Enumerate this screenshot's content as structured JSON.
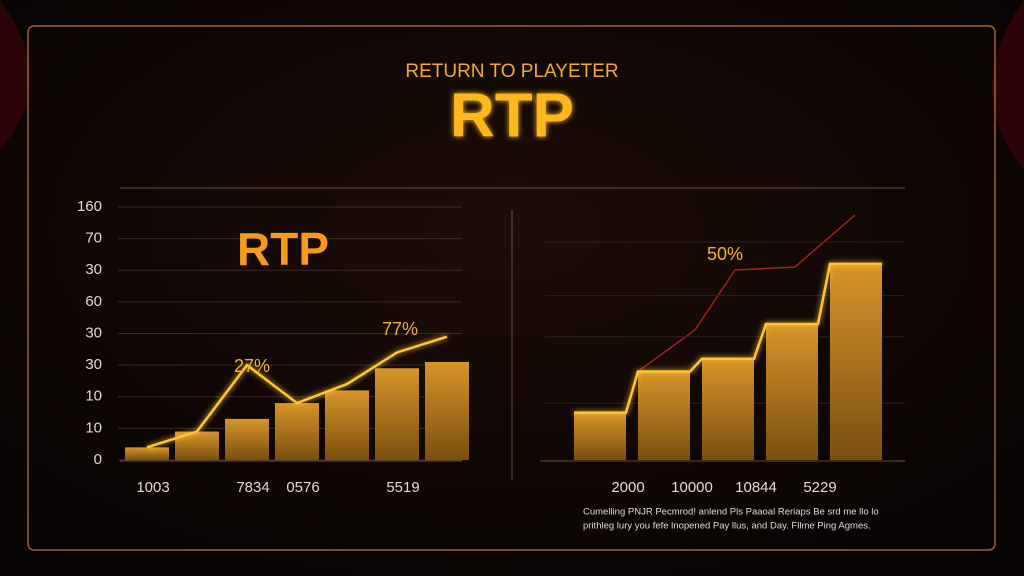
{
  "header": {
    "subtitle": "RETURN TO PLAYETER",
    "title": "RTP"
  },
  "chart_data": [
    {
      "type": "bar",
      "title": "RTP",
      "color": "#c98a1c",
      "line_color": "#ffc533",
      "categories": [
        "1003",
        null,
        "7834",
        "0576",
        null,
        "5519",
        null
      ],
      "values": [
        0.4,
        0.9,
        1.3,
        1.8,
        2.2,
        2.9,
        3.1
      ],
      "line_values": [
        0.4,
        0.9,
        3.0,
        1.8,
        2.4,
        3.4,
        3.9
      ],
      "annotations": [
        "27%",
        "77%"
      ],
      "ylim": [
        0,
        8
      ],
      "yticks": [
        0,
        {
          "value": 1,
          "label": "10"
        },
        {
          "value": 2,
          "label": "10"
        },
        {
          "value": 3,
          "label": "30"
        },
        {
          "value": 4,
          "label": "30"
        },
        {
          "value": 5,
          "label": "60"
        },
        {
          "value": 6,
          "label": "30"
        },
        {
          "value": 7,
          "label": "70"
        },
        {
          "value": 8,
          "label": "160"
        }
      ],
      "grid": true
    },
    {
      "type": "bar",
      "color": "#c98a1c",
      "line_color": "#ffc533",
      "categories": [
        "2000",
        "10000",
        "10844",
        "5229",
        null
      ],
      "values": [
        1.5,
        2.8,
        3.2,
        4.3,
        6.2
      ],
      "annotations": [
        "50%"
      ],
      "ylim": [
        0,
        8
      ]
    }
  ],
  "footer": [
    "Cumelling PNJR Pecmrod! anlend Pls Paaoal Reriaps Be srd me llo lo",
    "prithleg lury you fefe lnopened Pay llus, and Day. Fllme Ping Agmes."
  ]
}
